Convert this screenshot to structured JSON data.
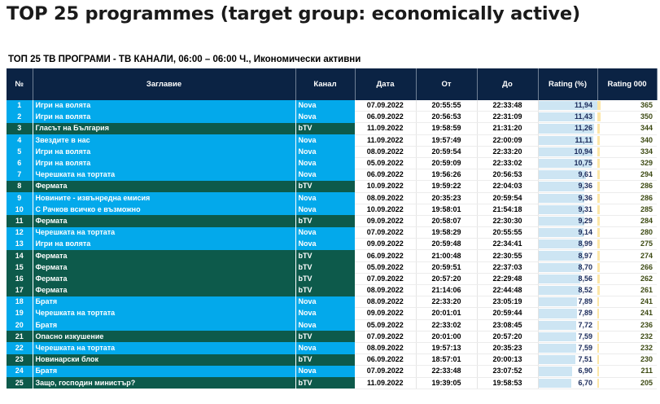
{
  "page_title": "TOP 25 programmes (target group: economically active)",
  "table_title": "ТОП 25 ТВ ПРОГРАМИ - ТВ КАНАЛИ, 06:00 – 06:00 Ч., Икономически активни",
  "columns": [
    "№",
    "Заглавие",
    "Канал",
    "Дата",
    "От",
    "До",
    "Rating (%)",
    "Rating 000"
  ],
  "colors": {
    "header": "#0b2344",
    "nova": "#03a9eb",
    "btv": "#0d5a4b",
    "rating_bar": "#cde5f3",
    "rating000_bar": "#fce6a8"
  },
  "rows": [
    {
      "n": "1",
      "title": "Игри на волята",
      "channel": "Nova",
      "date": "07.09.2022",
      "from": "20:55:55",
      "to": "22:33:48",
      "rating": "11,94",
      "rating000": "365"
    },
    {
      "n": "2",
      "title": "Игри на волята",
      "channel": "Nova",
      "date": "06.09.2022",
      "from": "20:56:53",
      "to": "22:31:09",
      "rating": "11,43",
      "rating000": "350"
    },
    {
      "n": "3",
      "title": "Гласът на България",
      "channel": "bTV",
      "date": "11.09.2022",
      "from": "19:58:59",
      "to": "21:31:20",
      "rating": "11,26",
      "rating000": "344"
    },
    {
      "n": "4",
      "title": "Звездите в нас",
      "channel": "Nova",
      "date": "11.09.2022",
      "from": "19:57:49",
      "to": "22:00:09",
      "rating": "11,11",
      "rating000": "340"
    },
    {
      "n": "5",
      "title": "Игри на волята",
      "channel": "Nova",
      "date": "08.09.2022",
      "from": "20:59:54",
      "to": "22:33:20",
      "rating": "10,94",
      "rating000": "334"
    },
    {
      "n": "6",
      "title": "Игри на волята",
      "channel": "Nova",
      "date": "05.09.2022",
      "from": "20:59:09",
      "to": "22:33:02",
      "rating": "10,75",
      "rating000": "329"
    },
    {
      "n": "7",
      "title": "Черешката на тортата",
      "channel": "Nova",
      "date": "06.09.2022",
      "from": "19:56:26",
      "to": "20:56:53",
      "rating": "9,61",
      "rating000": "294"
    },
    {
      "n": "8",
      "title": "Фермата",
      "channel": "bTV",
      "date": "10.09.2022",
      "from": "19:59:22",
      "to": "22:04:03",
      "rating": "9,36",
      "rating000": "286"
    },
    {
      "n": "9",
      "title": "Новините - извънредна емисия",
      "channel": "Nova",
      "date": "08.09.2022",
      "from": "20:35:23",
      "to": "20:59:54",
      "rating": "9,36",
      "rating000": "286"
    },
    {
      "n": "10",
      "title": "С Рачков всичко е възможно",
      "channel": "Nova",
      "date": "10.09.2022",
      "from": "19:58:01",
      "to": "21:54:18",
      "rating": "9,31",
      "rating000": "285"
    },
    {
      "n": "11",
      "title": "Фермата",
      "channel": "bTV",
      "date": "09.09.2022",
      "from": "20:58:07",
      "to": "22:30:30",
      "rating": "9,29",
      "rating000": "284"
    },
    {
      "n": "12",
      "title": "Черешката на тортата",
      "channel": "Nova",
      "date": "07.09.2022",
      "from": "19:58:29",
      "to": "20:55:55",
      "rating": "9,14",
      "rating000": "280"
    },
    {
      "n": "13",
      "title": "Игри на волята",
      "channel": "Nova",
      "date": "09.09.2022",
      "from": "20:59:48",
      "to": "22:34:41",
      "rating": "8,99",
      "rating000": "275"
    },
    {
      "n": "14",
      "title": "Фермата",
      "channel": "bTV",
      "date": "06.09.2022",
      "from": "21:00:48",
      "to": "22:30:55",
      "rating": "8,97",
      "rating000": "274"
    },
    {
      "n": "15",
      "title": "Фермата",
      "channel": "bTV",
      "date": "05.09.2022",
      "from": "20:59:51",
      "to": "22:37:03",
      "rating": "8,70",
      "rating000": "266"
    },
    {
      "n": "16",
      "title": "Фермата",
      "channel": "bTV",
      "date": "07.09.2022",
      "from": "20:57:20",
      "to": "22:29:48",
      "rating": "8,56",
      "rating000": "262"
    },
    {
      "n": "17",
      "title": "Фермата",
      "channel": "bTV",
      "date": "08.09.2022",
      "from": "21:14:06",
      "to": "22:44:48",
      "rating": "8,52",
      "rating000": "261"
    },
    {
      "n": "18",
      "title": "Братя",
      "channel": "Nova",
      "date": "08.09.2022",
      "from": "22:33:20",
      "to": "23:05:19",
      "rating": "7,89",
      "rating000": "241"
    },
    {
      "n": "19",
      "title": "Черешката на тортата",
      "channel": "Nova",
      "date": "09.09.2022",
      "from": "20:01:01",
      "to": "20:59:44",
      "rating": "7,89",
      "rating000": "241"
    },
    {
      "n": "20",
      "title": "Братя",
      "channel": "Nova",
      "date": "05.09.2022",
      "from": "22:33:02",
      "to": "23:08:45",
      "rating": "7,72",
      "rating000": "236"
    },
    {
      "n": "21",
      "title": "Опасно изкушение",
      "channel": "bTV",
      "date": "07.09.2022",
      "from": "20:01:00",
      "to": "20:57:20",
      "rating": "7,59",
      "rating000": "232"
    },
    {
      "n": "22",
      "title": "Черешката на тортата",
      "channel": "Nova",
      "date": "08.09.2022",
      "from": "19:57:13",
      "to": "20:35:23",
      "rating": "7,59",
      "rating000": "232"
    },
    {
      "n": "23",
      "title": "Новинарски блок",
      "channel": "bTV",
      "date": "06.09.2022",
      "from": "18:57:01",
      "to": "20:00:13",
      "rating": "7,51",
      "rating000": "230"
    },
    {
      "n": "24",
      "title": "Братя",
      "channel": "Nova",
      "date": "07.09.2022",
      "from": "22:33:48",
      "to": "23:07:52",
      "rating": "6,90",
      "rating000": "211"
    },
    {
      "n": "25",
      "title": "Защо, господин министър?",
      "channel": "bTV",
      "date": "11.09.2022",
      "from": "19:39:05",
      "to": "19:58:53",
      "rating": "6,70",
      "rating000": "205"
    }
  ]
}
